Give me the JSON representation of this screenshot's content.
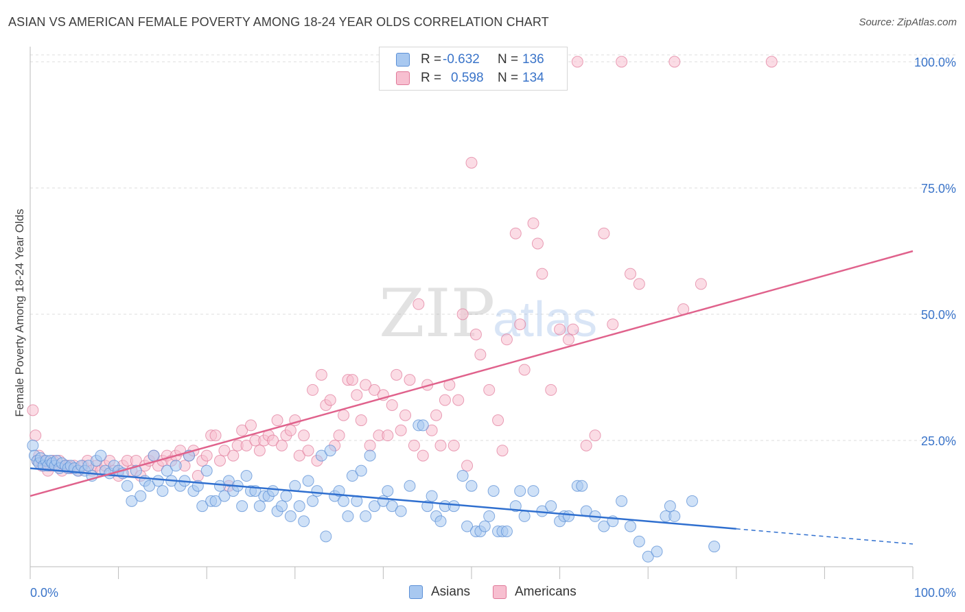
{
  "header": {
    "title": "ASIAN VS AMERICAN FEMALE POVERTY AMONG 18-24 YEAR OLDS CORRELATION CHART",
    "source": "Source: ZipAtlas.com"
  },
  "watermark": {
    "zip": "ZIP",
    "atlas": "atlas"
  },
  "legend": {
    "rows": [
      {
        "r_label": "R =",
        "r_value": "-0.632",
        "n_label": "N =",
        "n_value": "136",
        "color": "#a8c8f0",
        "border": "#5b8fd6"
      },
      {
        "r_label": "R =",
        "r_value": "0.598",
        "n_label": "N =",
        "n_value": "134",
        "color": "#f7bfd0",
        "border": "#e07898"
      }
    ]
  },
  "bottom_legend": {
    "asians": "Asians",
    "americans": "Americans"
  },
  "colors": {
    "asians_fill": "#a8c8f0",
    "asians_stroke": "#5b8fd6",
    "asians_line": "#2f6fcf",
    "americans_fill": "#f7bfd0",
    "americans_stroke": "#e07898",
    "americans_line": "#e0628c",
    "tick_label": "#3a74c9",
    "grid": "#dddddd"
  },
  "chart_data": {
    "type": "scatter",
    "title": "ASIAN VS AMERICAN FEMALE POVERTY AMONG 18-24 YEAR OLDS CORRELATION CHART",
    "xlabel": "",
    "ylabel": "Female Poverty Among 18-24 Year Olds",
    "xlim": [
      0,
      100
    ],
    "ylim": [
      0,
      100
    ],
    "x_tick_labels": [
      "0.0%",
      "100.0%"
    ],
    "y_ticks": [
      25,
      50,
      75,
      100
    ],
    "y_tick_labels": [
      "25.0%",
      "50.0%",
      "75.0%",
      "100.0%"
    ],
    "grid": "horizontal dashed",
    "series": [
      {
        "name": "Asians",
        "r": -0.632,
        "n": 136,
        "trend": {
          "x1": 0,
          "y1": 19.5,
          "x2": 80,
          "y2": 7.5,
          "dash_x2": 100,
          "dash_y2": 4.5
        },
        "points": [
          [
            0.3,
            24
          ],
          [
            0.5,
            22
          ],
          [
            0.8,
            21
          ],
          [
            1,
            20.5
          ],
          [
            1.2,
            21.5
          ],
          [
            1.5,
            20
          ],
          [
            1.8,
            21
          ],
          [
            2,
            20
          ],
          [
            2.3,
            21
          ],
          [
            2.5,
            20.5
          ],
          [
            2.8,
            20
          ],
          [
            3,
            21
          ],
          [
            3.3,
            19.5
          ],
          [
            3.6,
            20.5
          ],
          [
            4,
            20
          ],
          [
            4.3,
            19.5
          ],
          [
            4.6,
            20
          ],
          [
            5,
            19.5
          ],
          [
            5.4,
            19
          ],
          [
            5.8,
            20
          ],
          [
            6.2,
            19
          ],
          [
            6.6,
            20
          ],
          [
            7,
            18
          ],
          [
            7.5,
            21
          ],
          [
            8,
            22
          ],
          [
            8.5,
            19
          ],
          [
            9,
            18.5
          ],
          [
            9.5,
            20
          ],
          [
            10,
            19
          ],
          [
            10.5,
            18.5
          ],
          [
            11,
            16
          ],
          [
            11.5,
            13
          ],
          [
            12,
            19
          ],
          [
            12.5,
            14
          ],
          [
            13,
            17
          ],
          [
            13.5,
            16
          ],
          [
            14,
            22
          ],
          [
            14.5,
            17
          ],
          [
            15,
            15
          ],
          [
            15.5,
            19
          ],
          [
            16,
            17
          ],
          [
            16.5,
            20
          ],
          [
            17,
            16
          ],
          [
            17.5,
            17
          ],
          [
            18,
            22
          ],
          [
            18.5,
            15
          ],
          [
            19,
            16
          ],
          [
            19.5,
            12
          ],
          [
            20,
            19
          ],
          [
            20.5,
            13
          ],
          [
            21,
            13
          ],
          [
            21.5,
            16
          ],
          [
            22,
            14
          ],
          [
            22.5,
            17
          ],
          [
            23,
            15
          ],
          [
            23.5,
            16
          ],
          [
            24,
            12
          ],
          [
            24.5,
            18
          ],
          [
            25,
            15
          ],
          [
            25.5,
            15
          ],
          [
            26,
            12
          ],
          [
            26.5,
            14
          ],
          [
            27,
            14
          ],
          [
            27.5,
            15
          ],
          [
            28,
            11
          ],
          [
            28.5,
            12
          ],
          [
            29,
            14
          ],
          [
            29.5,
            10
          ],
          [
            30,
            16
          ],
          [
            30.5,
            12
          ],
          [
            31,
            9
          ],
          [
            31.5,
            17
          ],
          [
            32,
            13
          ],
          [
            32.5,
            15
          ],
          [
            33,
            22
          ],
          [
            33.5,
            6
          ],
          [
            34,
            23
          ],
          [
            34.5,
            14
          ],
          [
            35,
            15
          ],
          [
            35.5,
            13
          ],
          [
            36,
            10
          ],
          [
            36.5,
            18
          ],
          [
            37,
            13
          ],
          [
            37.5,
            19
          ],
          [
            38,
            10
          ],
          [
            38.5,
            22
          ],
          [
            39,
            12
          ],
          [
            40,
            13
          ],
          [
            40.5,
            15
          ],
          [
            41,
            12
          ],
          [
            42,
            11
          ],
          [
            43,
            16
          ],
          [
            44,
            28
          ],
          [
            44.5,
            28
          ],
          [
            45,
            12
          ],
          [
            45.5,
            14
          ],
          [
            46,
            10
          ],
          [
            46.5,
            9
          ],
          [
            47,
            12
          ],
          [
            48,
            12
          ],
          [
            49,
            18
          ],
          [
            49.5,
            8
          ],
          [
            50,
            16
          ],
          [
            50.5,
            7
          ],
          [
            51,
            7
          ],
          [
            51.5,
            8
          ],
          [
            52,
            10
          ],
          [
            52.5,
            15
          ],
          [
            53,
            7
          ],
          [
            53.5,
            7
          ],
          [
            54,
            7
          ],
          [
            55,
            12
          ],
          [
            55.5,
            15
          ],
          [
            56,
            10
          ],
          [
            57,
            15
          ],
          [
            58,
            11
          ],
          [
            59,
            12
          ],
          [
            60,
            9
          ],
          [
            60.5,
            10
          ],
          [
            61,
            10
          ],
          [
            62,
            16
          ],
          [
            62.5,
            16
          ],
          [
            63,
            11
          ],
          [
            64,
            10
          ],
          [
            65,
            8
          ],
          [
            66,
            9
          ],
          [
            67,
            13
          ],
          [
            68,
            8
          ],
          [
            69,
            5
          ],
          [
            70,
            2
          ],
          [
            71,
            3
          ],
          [
            72,
            10
          ],
          [
            72.5,
            12
          ],
          [
            73,
            10
          ],
          [
            75,
            13
          ],
          [
            77.5,
            4
          ]
        ]
      },
      {
        "name": "Americans",
        "r": 0.598,
        "n": 134,
        "trend": {
          "x1": 0,
          "y1": 14,
          "x2": 100,
          "y2": 62.5
        },
        "points": [
          [
            0.3,
            31
          ],
          [
            0.6,
            26
          ],
          [
            0.8,
            21
          ],
          [
            1,
            22
          ],
          [
            1.3,
            20
          ],
          [
            1.6,
            21
          ],
          [
            2,
            19
          ],
          [
            2.3,
            20
          ],
          [
            2.6,
            21
          ],
          [
            3,
            20
          ],
          [
            3.3,
            21
          ],
          [
            3.6,
            19
          ],
          [
            4,
            20
          ],
          [
            4.3,
            20
          ],
          [
            4.6,
            19.5
          ],
          [
            5,
            20
          ],
          [
            5.5,
            19
          ],
          [
            6,
            20
          ],
          [
            6.5,
            21
          ],
          [
            7,
            19
          ],
          [
            7.5,
            20
          ],
          [
            8,
            19
          ],
          [
            8.5,
            20
          ],
          [
            9,
            21
          ],
          [
            9.5,
            19
          ],
          [
            10,
            18
          ],
          [
            10.5,
            20
          ],
          [
            11,
            21
          ],
          [
            11.5,
            19
          ],
          [
            12,
            21
          ],
          [
            12.5,
            18
          ],
          [
            13,
            20
          ],
          [
            13.5,
            21
          ],
          [
            14,
            22
          ],
          [
            14.5,
            20
          ],
          [
            15,
            21
          ],
          [
            15.5,
            22
          ],
          [
            16,
            21
          ],
          [
            16.5,
            22
          ],
          [
            17,
            23
          ],
          [
            17.5,
            20
          ],
          [
            18,
            22
          ],
          [
            18.5,
            23
          ],
          [
            19,
            18
          ],
          [
            19.5,
            21
          ],
          [
            20,
            22
          ],
          [
            20.5,
            26
          ],
          [
            21,
            26
          ],
          [
            21.5,
            21
          ],
          [
            22,
            23
          ],
          [
            22.5,
            16
          ],
          [
            23,
            22
          ],
          [
            23.5,
            24
          ],
          [
            24,
            27
          ],
          [
            24.5,
            24
          ],
          [
            25,
            28
          ],
          [
            25.5,
            25
          ],
          [
            26,
            23
          ],
          [
            26.5,
            25
          ],
          [
            27,
            26
          ],
          [
            27.5,
            25
          ],
          [
            28,
            29
          ],
          [
            28.5,
            24
          ],
          [
            29,
            26
          ],
          [
            29.5,
            27
          ],
          [
            30,
            29
          ],
          [
            30.5,
            22
          ],
          [
            31,
            26
          ],
          [
            31.5,
            23
          ],
          [
            32,
            35
          ],
          [
            32.5,
            21
          ],
          [
            33,
            38
          ],
          [
            33.5,
            32
          ],
          [
            34,
            33
          ],
          [
            34.5,
            24
          ],
          [
            35,
            26
          ],
          [
            35.5,
            30
          ],
          [
            36,
            37
          ],
          [
            36.5,
            37
          ],
          [
            37,
            34
          ],
          [
            37.5,
            29
          ],
          [
            38,
            36
          ],
          [
            38.5,
            24
          ],
          [
            39,
            35
          ],
          [
            39.5,
            26
          ],
          [
            40,
            34
          ],
          [
            40.5,
            26
          ],
          [
            41,
            32
          ],
          [
            41.5,
            38
          ],
          [
            42,
            27
          ],
          [
            42.5,
            30
          ],
          [
            43,
            37
          ],
          [
            43.5,
            24
          ],
          [
            44,
            52
          ],
          [
            44.5,
            22
          ],
          [
            45,
            36
          ],
          [
            45.5,
            27
          ],
          [
            46,
            30
          ],
          [
            46.5,
            24
          ],
          [
            47,
            33
          ],
          [
            47.5,
            36
          ],
          [
            48,
            24
          ],
          [
            48.5,
            33
          ],
          [
            49,
            50
          ],
          [
            49.5,
            20
          ],
          [
            50,
            80
          ],
          [
            50.5,
            46
          ],
          [
            51,
            42
          ],
          [
            52,
            35
          ],
          [
            53,
            29
          ],
          [
            53.5,
            23
          ],
          [
            54,
            45
          ],
          [
            55,
            66
          ],
          [
            55.5,
            48
          ],
          [
            56,
            39
          ],
          [
            57,
            68
          ],
          [
            57.5,
            64
          ],
          [
            58,
            58
          ],
          [
            59,
            35
          ],
          [
            60,
            47
          ],
          [
            61,
            45
          ],
          [
            61.5,
            47
          ],
          [
            62,
            100
          ],
          [
            63,
            24
          ],
          [
            64,
            26
          ],
          [
            65,
            66
          ],
          [
            66,
            48
          ],
          [
            67,
            100
          ],
          [
            68,
            58
          ],
          [
            69,
            56
          ],
          [
            73,
            100
          ],
          [
            74,
            51
          ],
          [
            76,
            56
          ],
          [
            84,
            100
          ]
        ]
      }
    ]
  }
}
